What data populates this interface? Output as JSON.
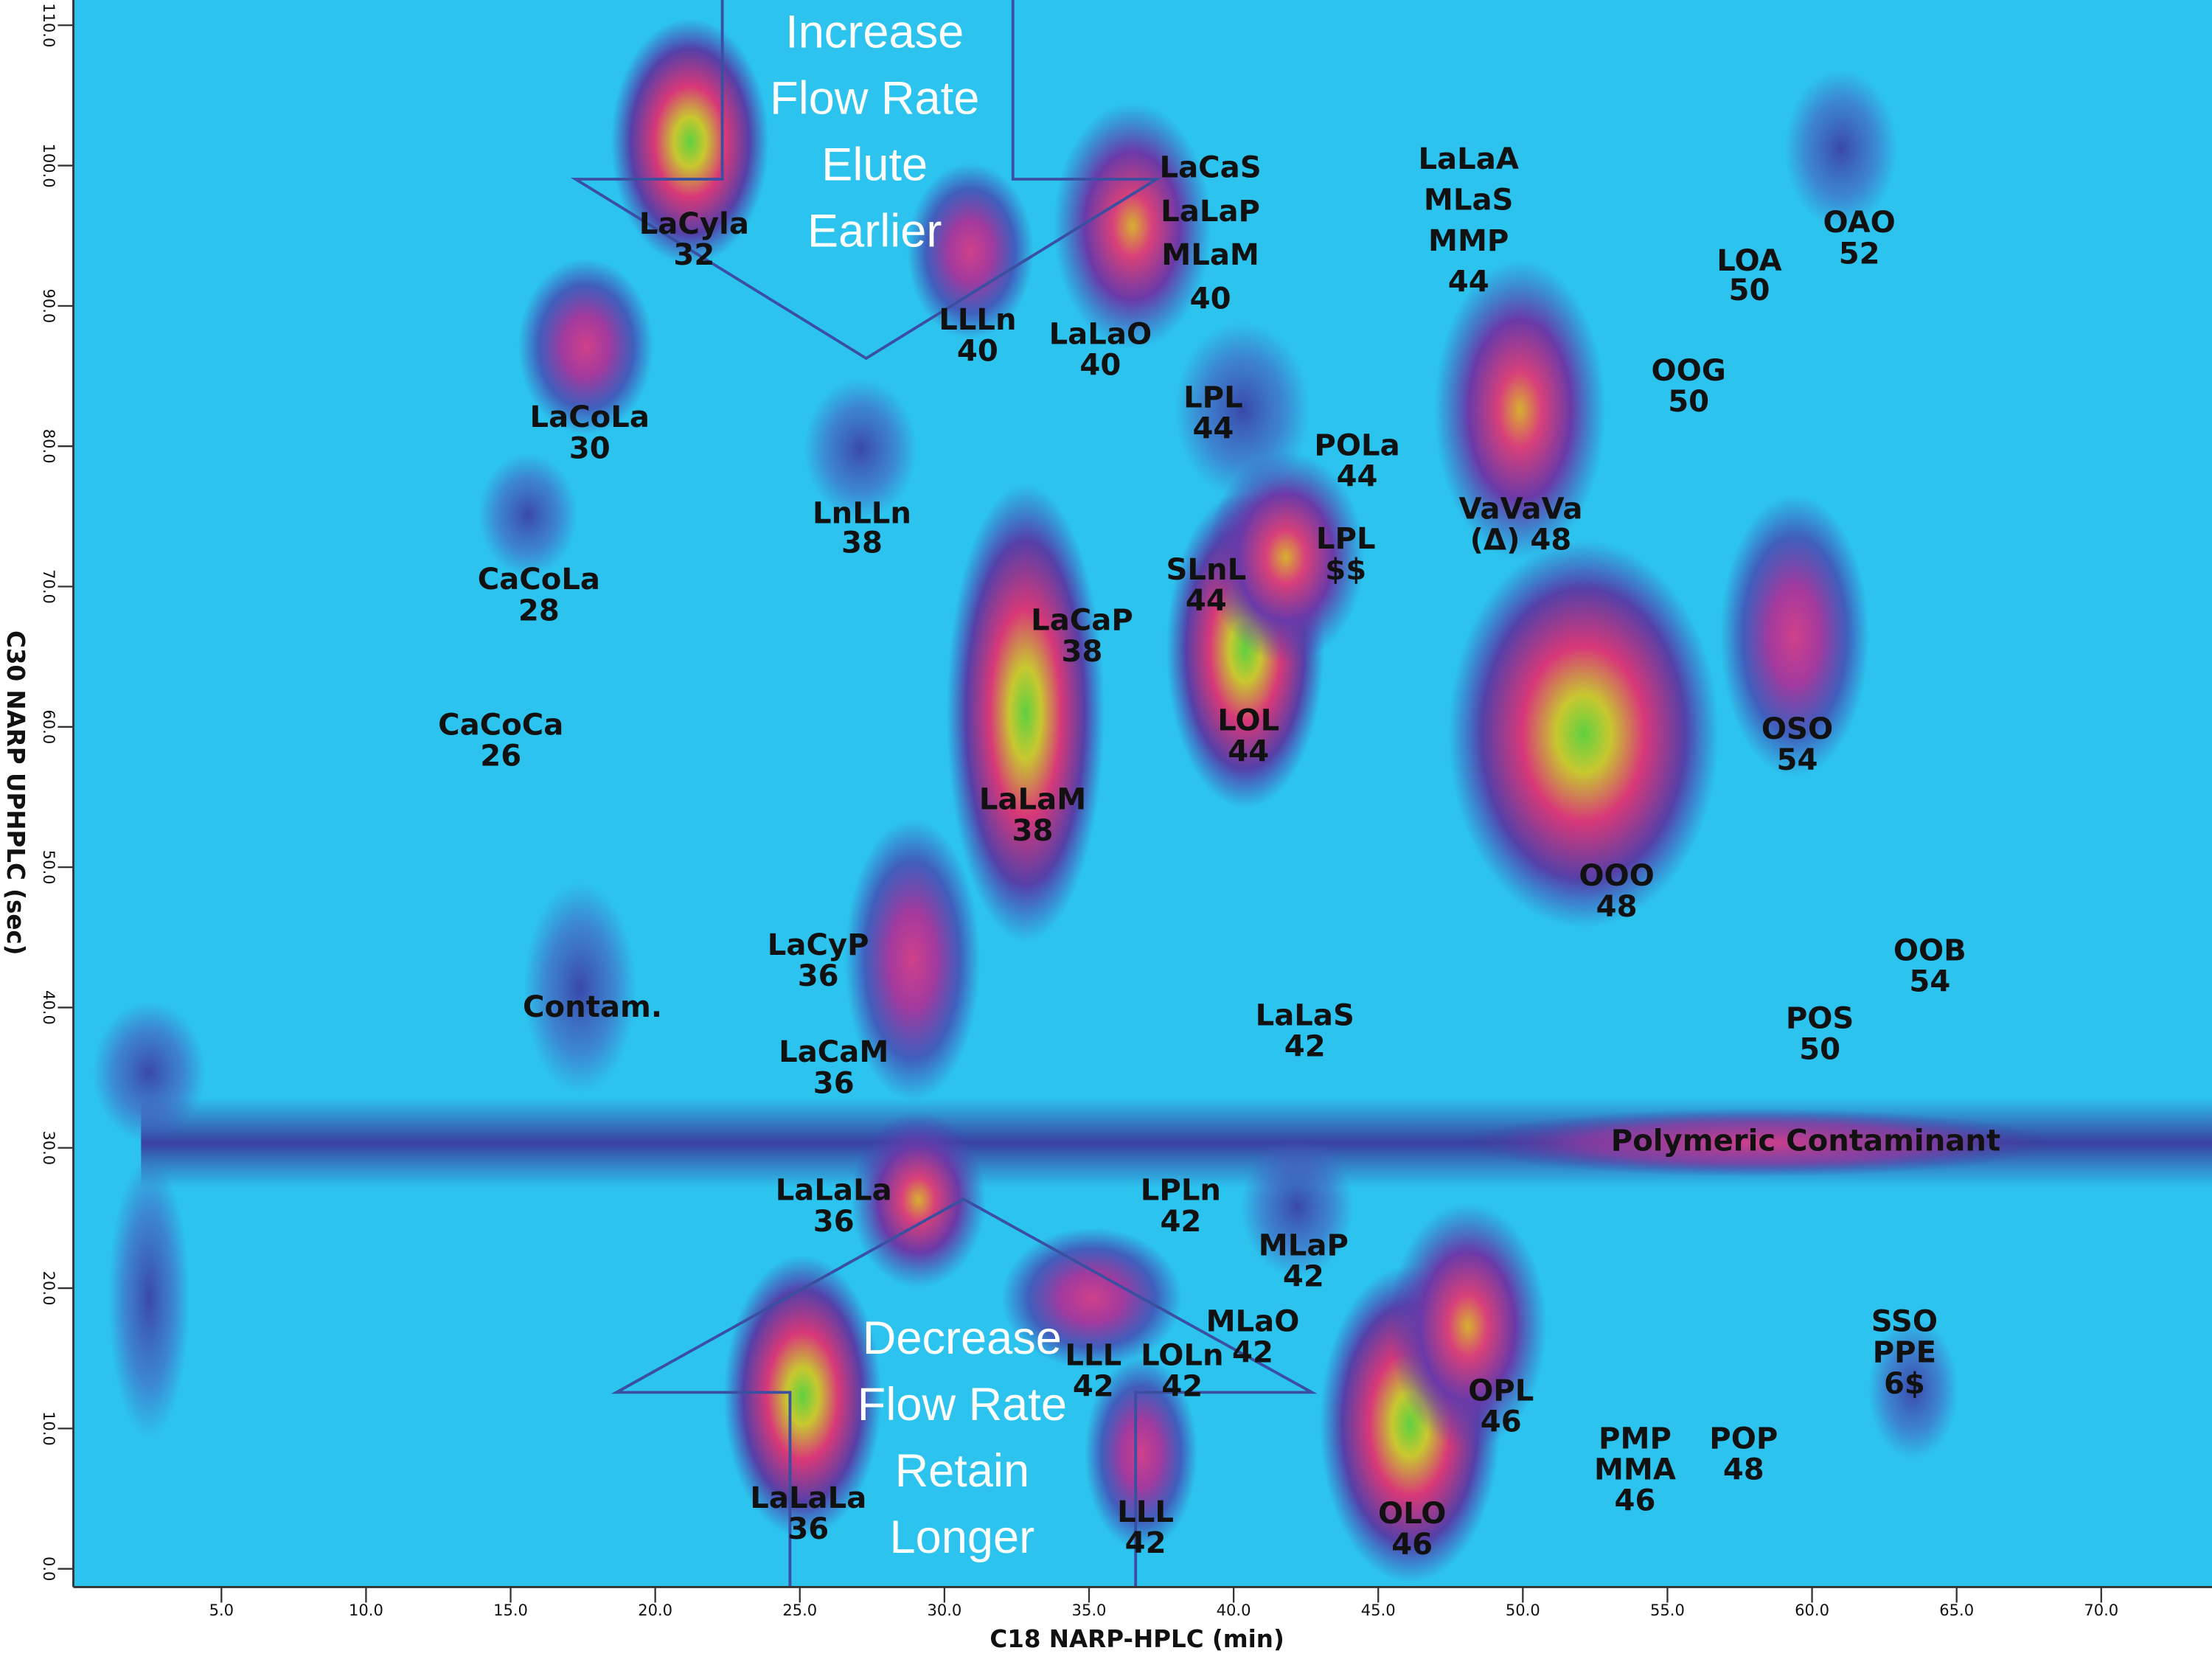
{
  "chart_data": {
    "type": "heatmap",
    "x_label": "C18 NARP-HPLC (min)",
    "y_label": "C30 NARP UPHPLC (sec)",
    "xlim": [
      -0.12,
      73.83
    ],
    "ylim": [
      -1.3,
      111.8
    ],
    "xticks": [
      {
        "value": 5,
        "label": "5.0"
      },
      {
        "value": 10,
        "label": "10.0"
      },
      {
        "value": 15,
        "label": "15.0"
      },
      {
        "value": 20,
        "label": "20.0"
      },
      {
        "value": 25,
        "label": "25.0"
      },
      {
        "value": 30,
        "label": "30.0"
      },
      {
        "value": 35,
        "label": "35.0"
      },
      {
        "value": 40,
        "label": "40.0"
      },
      {
        "value": 45,
        "label": "45.0"
      },
      {
        "value": 50,
        "label": "50.0"
      },
      {
        "value": 55,
        "label": "55.0"
      },
      {
        "value": 60,
        "label": "60.0"
      },
      {
        "value": 65,
        "label": "65.0"
      },
      {
        "value": 70,
        "label": "70.0"
      }
    ],
    "yticks": [
      {
        "value": 0,
        "label": "0.0"
      },
      {
        "value": 10,
        "label": "10.0"
      },
      {
        "value": 20,
        "label": "20.0"
      },
      {
        "value": 30,
        "label": "30.0"
      },
      {
        "value": 40,
        "label": "40.0"
      },
      {
        "value": 50,
        "label": "50.0"
      },
      {
        "value": 60,
        "label": "60.0"
      },
      {
        "value": 70,
        "label": "70.0"
      },
      {
        "value": 80,
        "label": "80.0"
      },
      {
        "value": 90,
        "label": "90.0"
      },
      {
        "value": 100,
        "label": "100.0"
      },
      {
        "value": 110,
        "label": "110.0"
      }
    ],
    "peaks": {
      "x": [
        21.2,
        30.9,
        36.5,
        17.6,
        27.1,
        15.6,
        32.8,
        40.4,
        41.8,
        40.3,
        49.9,
        52.1,
        59.4,
        61.0,
        28.9,
        29.1,
        25.1,
        35.1,
        36.8,
        46.1,
        48.1,
        17.4,
        2.5,
        2.5,
        42.2,
        63.5
      ],
      "y": [
        101.7,
        93.9,
        95.7,
        87.1,
        79.8,
        75.1,
        61.0,
        65.5,
        72.1,
        82.6,
        82.6,
        59.5,
        66.5,
        101.2,
        43.4,
        26.3,
        12.3,
        19.3,
        8.2,
        10.3,
        17.3,
        41.4,
        35.4,
        19.3,
        25.8,
        12.8
      ]
    },
    "annotations": [
      [
        "LaCyla",
        "32"
      ],
      [
        "LLLn",
        "40"
      ],
      [
        "LaLaO",
        "40"
      ],
      [
        "LaCaS",
        "LaLaP",
        "MLaM",
        "40"
      ],
      [
        "LaLaA",
        "MLaS",
        "MMP",
        "44"
      ],
      [
        "LOA",
        "50"
      ],
      [
        "OAO",
        "52"
      ],
      [
        "OOG",
        "50"
      ],
      [
        "LaCoLa",
        "30"
      ],
      [
        "LPL",
        "44"
      ],
      [
        "POLa",
        "44"
      ],
      [
        "LnLLn",
        "38"
      ],
      [
        "VaVaVa",
        "(Δ) 48"
      ],
      [
        "LPL",
        "$$"
      ],
      [
        "SLnL",
        "44"
      ],
      [
        "CaCoLa",
        "28"
      ],
      [
        "LaCaP",
        "38"
      ],
      [
        "LOL",
        "44"
      ],
      [
        "CaCoCa",
        "26"
      ],
      [
        "OSO",
        "54"
      ],
      [
        "LaLaM",
        "38"
      ],
      [
        "OOO",
        "48"
      ],
      [
        "OOB",
        "54"
      ],
      [
        "LaCyP",
        "36"
      ],
      [
        "Contam."
      ],
      [
        "LaLaS",
        "42"
      ],
      [
        "POS",
        "50"
      ],
      [
        "LaCaM",
        "36"
      ],
      [
        "Polymeric Contaminant"
      ],
      [
        "LaLaLa",
        "36"
      ],
      [
        "LPLn",
        "42"
      ],
      [
        "MLaP",
        "42"
      ],
      [
        "SSO",
        "PPE",
        "6$"
      ],
      [
        "MLaO",
        "42"
      ],
      [
        "LLL",
        "42"
      ],
      [
        "LOLn",
        "42"
      ],
      [
        "OPL",
        "46"
      ],
      [
        "PMP",
        "MMA",
        "46"
      ],
      [
        "POP",
        "48"
      ],
      [
        "LaLaLa",
        "36"
      ],
      [
        "LLL",
        "42"
      ],
      [
        "OLO",
        "46"
      ],
      [
        "Increase",
        "Flow Rate",
        "Elute",
        "Earlier"
      ],
      [
        "Decrease",
        "Flow Rate",
        "Retain",
        "Longer"
      ]
    ]
  }
}
